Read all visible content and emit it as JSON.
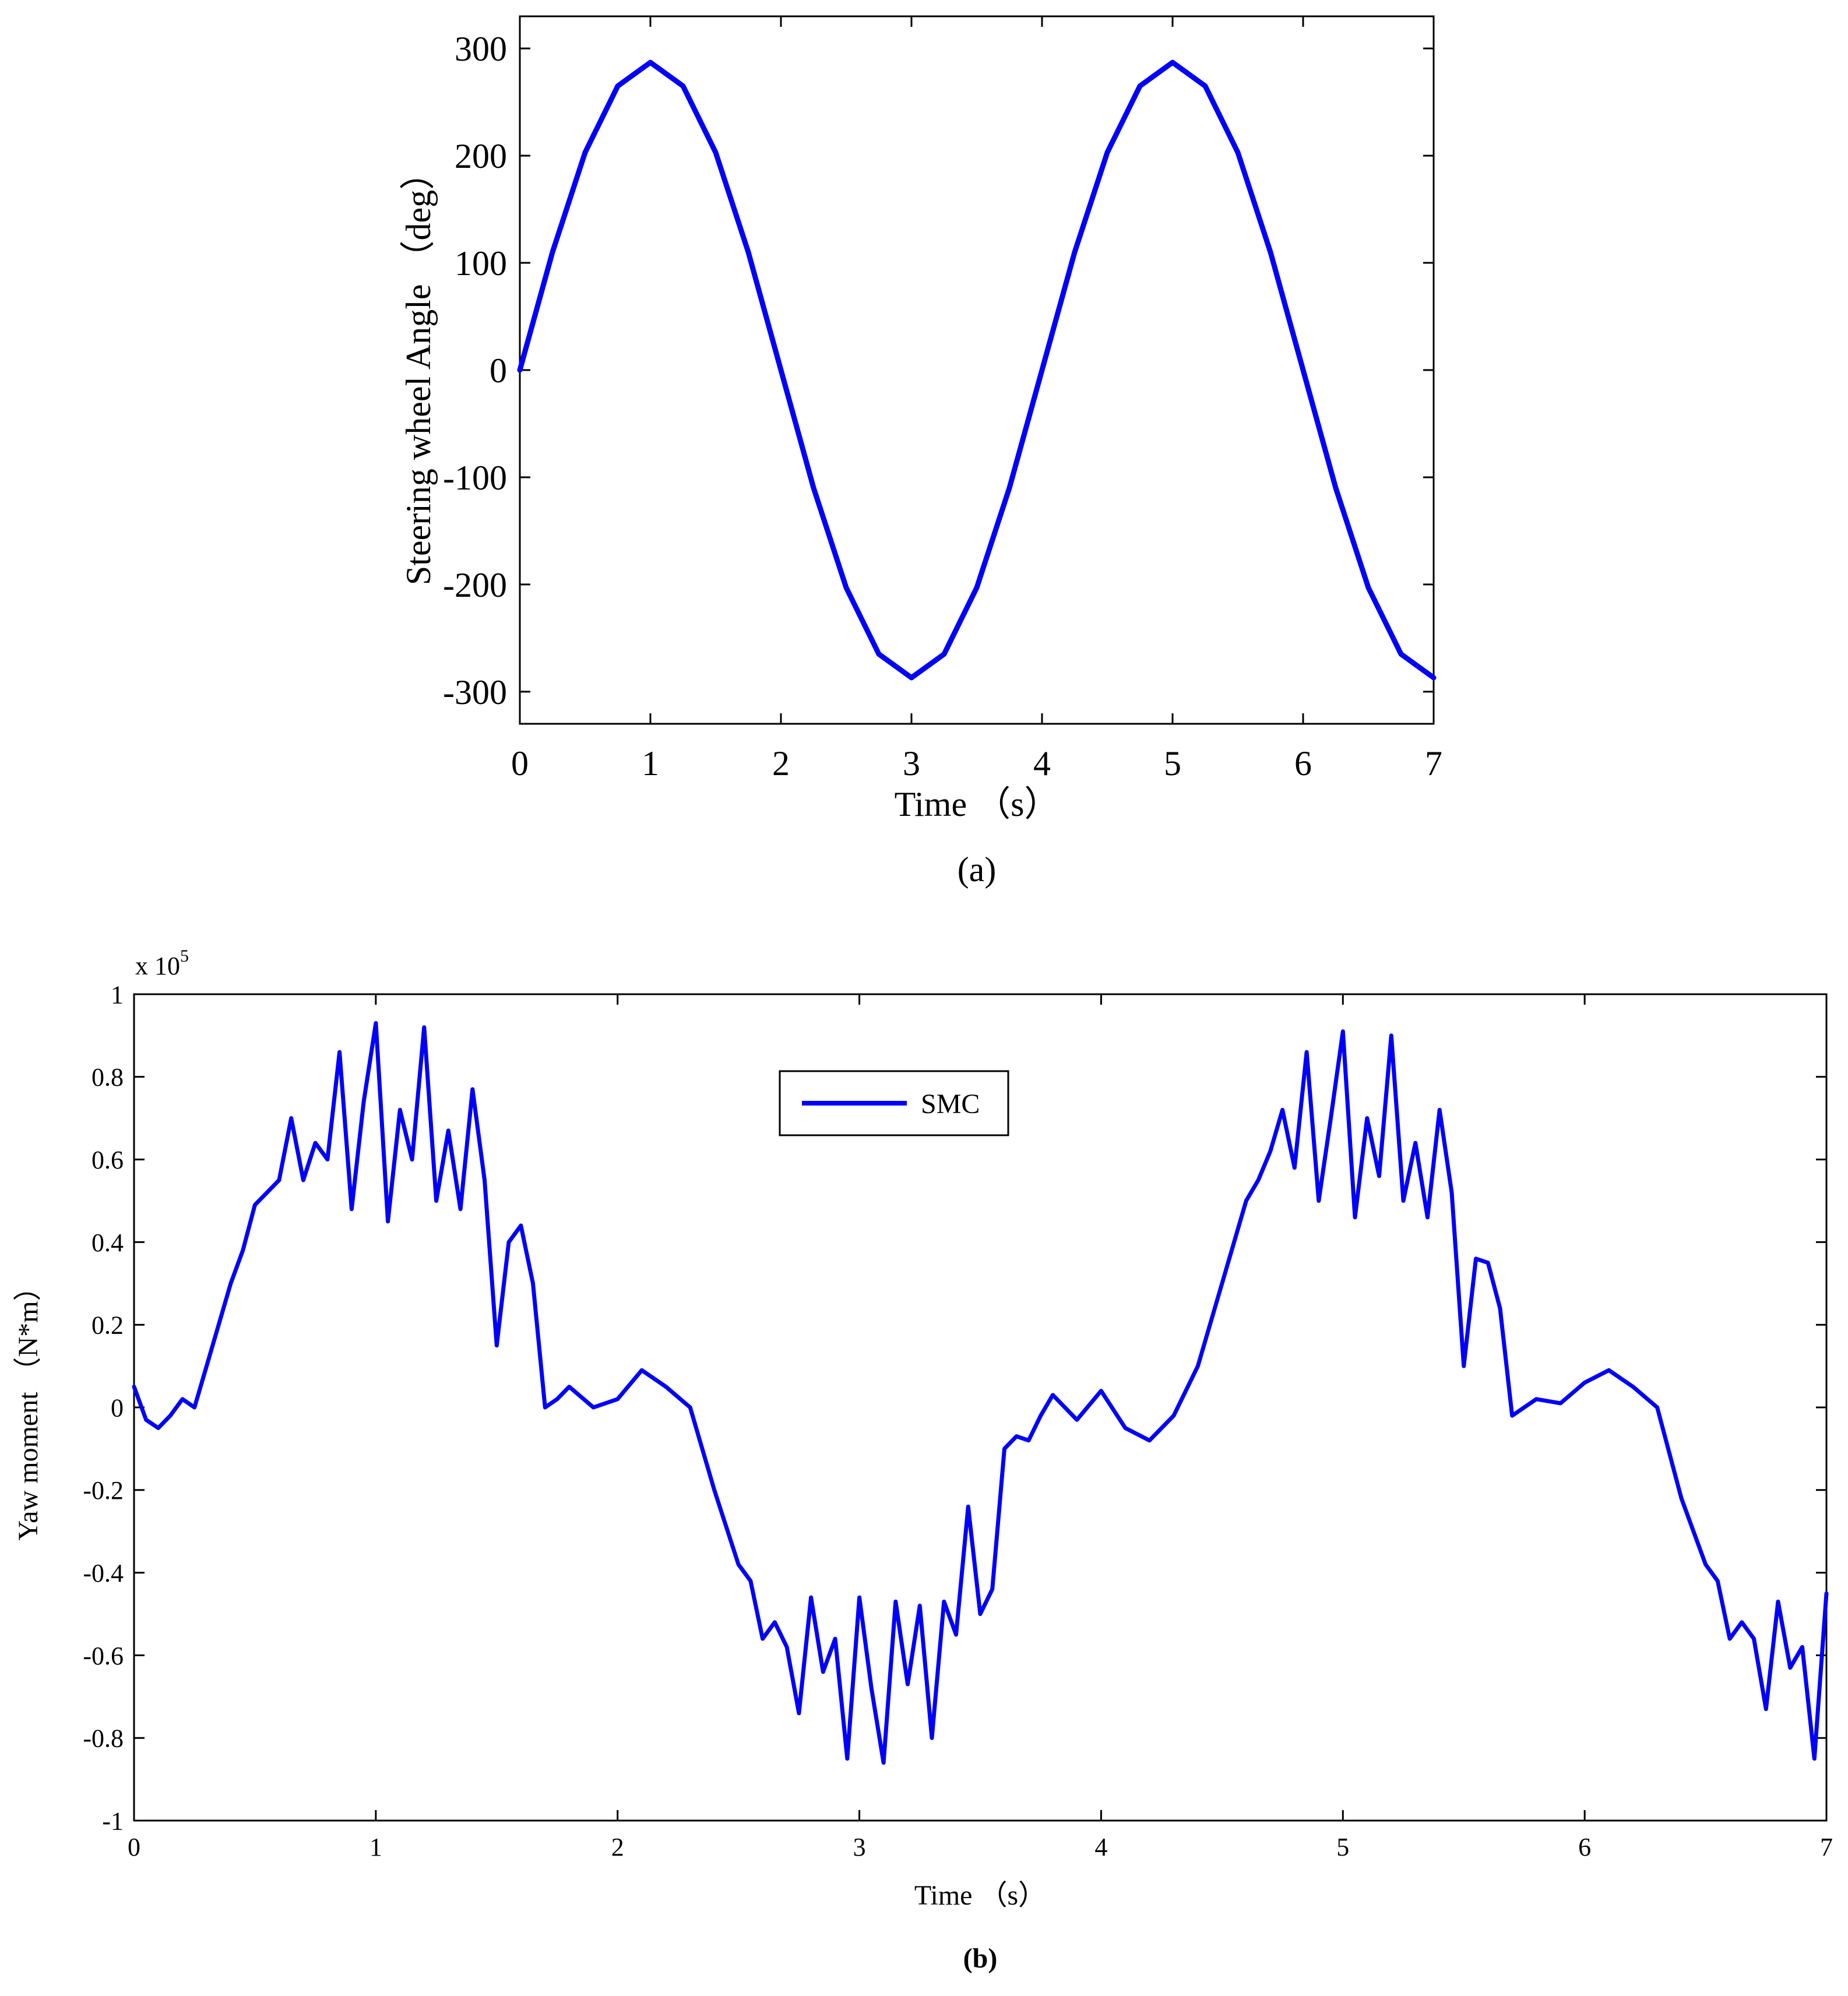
{
  "chart_data": [
    {
      "panel_label": "(a)",
      "type": "line",
      "xlabel": "Time （s）",
      "ylabel": "Steering wheel Angle （deg）",
      "xlim": [
        0,
        7
      ],
      "ylim": [
        -330,
        330
      ],
      "xticks": [
        0,
        1,
        2,
        3,
        4,
        5,
        6,
        7
      ],
      "xtick_labels": [
        "0",
        "1",
        "2",
        "3",
        "4",
        "5",
        "6",
        "7"
      ],
      "yticks": [
        300,
        200,
        100,
        0,
        -100,
        -200,
        -300
      ],
      "ytick_labels": [
        "300",
        "200",
        "100",
        "0",
        "-100",
        "-200",
        "-300"
      ],
      "grid": false,
      "legend": null,
      "series": [
        {
          "color": "#0000ff",
          "x": [
            0,
            0.25,
            0.5,
            0.75,
            1,
            1.25,
            1.5,
            1.75,
            2,
            2.25,
            2.5,
            2.75,
            3,
            3.25,
            3.5,
            3.75,
            4,
            4.25,
            4.5,
            4.75,
            5,
            5.25,
            5.5,
            5.75,
            6,
            6.25,
            6.5,
            6.75,
            7
          ],
          "values": [
            0,
            110,
            203,
            265,
            287,
            265,
            203,
            110,
            0,
            -110,
            -203,
            -265,
            -287,
            -265,
            -203,
            -110,
            0,
            110,
            203,
            265,
            287,
            265,
            203,
            110,
            0,
            -110,
            -203,
            -265,
            -287
          ]
        }
      ]
    },
    {
      "panel_label": "(b)",
      "type": "line",
      "xlabel": "Time （s）",
      "ylabel": "Yaw moment （N*m）",
      "axis_multiplier": "x 10",
      "axis_multiplier_exponent": "5",
      "xlim": [
        0,
        7
      ],
      "ylim": [
        -1,
        1
      ],
      "xticks": [
        0,
        1,
        2,
        3,
        4,
        5,
        6,
        7
      ],
      "xtick_labels": [
        "0",
        "1",
        "2",
        "3",
        "4",
        "5",
        "6",
        "7"
      ],
      "yticks": [
        1,
        0.8,
        0.6,
        0.4,
        0.2,
        0,
        -0.2,
        -0.4,
        -0.6,
        -0.8,
        -1
      ],
      "ytick_labels": [
        "1",
        "0.8",
        "0.6",
        "0.4",
        "0.2",
        "0",
        "-0.2",
        "-0.4",
        "-0.6",
        "-0.8",
        "-1"
      ],
      "grid": false,
      "legend": "top-center",
      "series": [
        {
          "name": "SMC",
          "color": "#0000ff",
          "x": [
            0,
            0.05,
            0.1,
            0.15,
            0.2,
            0.25,
            0.3,
            0.35,
            0.4,
            0.45,
            0.5,
            0.55,
            0.6,
            0.65,
            0.7,
            0.75,
            0.8,
            0.85,
            0.9,
            0.95,
            1.0,
            1.05,
            1.1,
            1.15,
            1.2,
            1.25,
            1.3,
            1.35,
            1.4,
            1.45,
            1.5,
            1.55,
            1.6,
            1.65,
            1.7,
            1.75,
            1.8,
            1.9,
            2.0,
            2.1,
            2.2,
            2.3,
            2.4,
            2.5,
            2.55,
            2.6,
            2.65,
            2.7,
            2.75,
            2.8,
            2.85,
            2.9,
            2.95,
            3.0,
            3.05,
            3.1,
            3.15,
            3.2,
            3.25,
            3.3,
            3.35,
            3.4,
            3.45,
            3.5,
            3.55,
            3.6,
            3.65,
            3.7,
            3.75,
            3.8,
            3.9,
            4.0,
            4.1,
            4.2,
            4.3,
            4.4,
            4.5,
            4.55,
            4.6,
            4.65,
            4.7,
            4.75,
            4.8,
            4.85,
            4.9,
            4.95,
            5.0,
            5.05,
            5.1,
            5.15,
            5.2,
            5.25,
            5.3,
            5.35,
            5.4,
            5.45,
            5.5,
            5.55,
            5.6,
            5.65,
            5.7,
            5.75,
            5.8,
            5.9,
            6.0,
            6.1,
            6.2,
            6.3,
            6.4,
            6.5,
            6.55,
            6.6,
            6.65,
            6.7,
            6.75,
            6.8,
            6.85,
            6.9,
            6.95,
            7.0
          ],
          "values": [
            0.05,
            -0.03,
            -0.05,
            -0.02,
            0.02,
            0.0,
            0.1,
            0.2,
            0.3,
            0.38,
            0.49,
            0.52,
            0.55,
            0.7,
            0.55,
            0.64,
            0.6,
            0.86,
            0.48,
            0.74,
            0.93,
            0.45,
            0.72,
            0.6,
            0.92,
            0.5,
            0.67,
            0.48,
            0.77,
            0.55,
            0.15,
            0.4,
            0.44,
            0.3,
            0.0,
            0.02,
            0.05,
            0.0,
            0.02,
            0.09,
            0.05,
            0.0,
            -0.2,
            -0.38,
            -0.42,
            -0.56,
            -0.52,
            -0.58,
            -0.74,
            -0.46,
            -0.64,
            -0.56,
            -0.85,
            -0.46,
            -0.68,
            -0.86,
            -0.47,
            -0.67,
            -0.48,
            -0.8,
            -0.47,
            -0.55,
            -0.24,
            -0.5,
            -0.44,
            -0.1,
            -0.07,
            -0.08,
            -0.02,
            0.03,
            -0.03,
            0.04,
            -0.05,
            -0.08,
            -0.02,
            0.1,
            0.3,
            0.4,
            0.5,
            0.55,
            0.62,
            0.72,
            0.58,
            0.86,
            0.5,
            0.7,
            0.91,
            0.46,
            0.7,
            0.56,
            0.9,
            0.5,
            0.64,
            0.46,
            0.72,
            0.52,
            0.1,
            0.36,
            0.35,
            0.24,
            -0.02,
            0.0,
            0.02,
            0.01,
            0.06,
            0.09,
            0.05,
            0.0,
            -0.22,
            -0.38,
            -0.42,
            -0.56,
            -0.52,
            -0.56,
            -0.73,
            -0.47,
            -0.63,
            -0.58,
            -0.85,
            -0.45
          ]
        }
      ]
    }
  ]
}
